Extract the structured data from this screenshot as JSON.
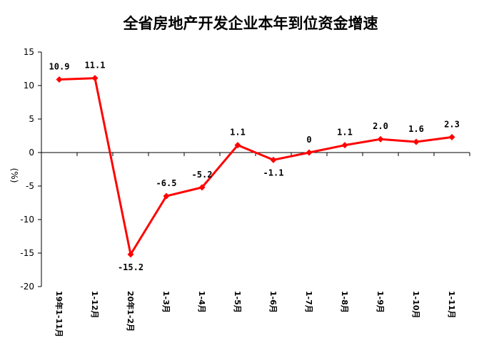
{
  "chart_data": {
    "type": "line",
    "title": "全省房地产开发企业本年到位资金增速",
    "ylabel": "(%)",
    "xlabel": "",
    "ylim": [
      -20,
      15
    ],
    "yticks": [
      15,
      10,
      5,
      0,
      -5,
      -10,
      -15,
      -20
    ],
    "categories": [
      "19年1-11月",
      "1-12月",
      "20年1-2月",
      "1-3月",
      "1-4月",
      "1-5月",
      "1-6月",
      "1-7月",
      "1-8月",
      "1-9月",
      "1-10月",
      "1-11月"
    ],
    "series": [
      {
        "values": [
          10.9,
          11.1,
          -15.2,
          -6.5,
          -5.2,
          1.1,
          -1.1,
          0,
          1.1,
          2.0,
          1.6,
          2.3
        ],
        "labels": [
          "10.9",
          "11.1",
          "-15.2",
          "-6.5",
          "-5.2",
          "1.1",
          "-1.1",
          "0",
          "1.1",
          "2.0",
          "1.6",
          "2.3"
        ],
        "color": "#ff0000"
      }
    ],
    "grid": false,
    "legend": "none"
  }
}
